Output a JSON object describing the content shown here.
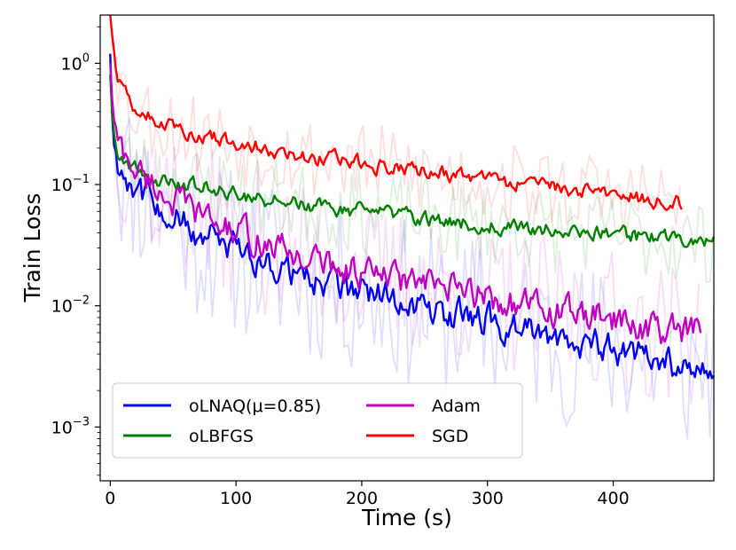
{
  "chart_data": {
    "type": "line",
    "title": "",
    "xlabel": "Time (s)",
    "ylabel": "Train Loss",
    "xscale": "linear",
    "yscale": "log",
    "xlim": [
      -8,
      480
    ],
    "ylim": [
      0.00036,
      2.5
    ],
    "xticks": [
      0,
      100,
      200,
      300,
      400
    ],
    "xtick_labels": [
      "0",
      "100",
      "200",
      "300",
      "400"
    ],
    "yticks": [
      1,
      0.1,
      0.01,
      0.001
    ],
    "ytick_labels": [
      {
        "base": "10",
        "exp": "0"
      },
      {
        "base": "10",
        "exp": "−1"
      },
      {
        "base": "10",
        "exp": "−2"
      },
      {
        "base": "10",
        "exp": "−3"
      }
    ],
    "grid": false,
    "legend": {
      "location": "lower-left",
      "columns": 2
    },
    "series": [
      {
        "name": "oLNAQ(μ=0.85)",
        "color": "#0000ee",
        "x": [
          0,
          2,
          5,
          10,
          20,
          30,
          40,
          50,
          60,
          70,
          80,
          100,
          120,
          140,
          160,
          180,
          200,
          220,
          240,
          260,
          280,
          300,
          320,
          340,
          360,
          380,
          400,
          420,
          440,
          460,
          480
        ],
        "y": [
          1.2,
          0.25,
          0.15,
          0.13,
          0.1,
          0.075,
          0.065,
          0.055,
          0.045,
          0.038,
          0.035,
          0.028,
          0.024,
          0.02,
          0.017,
          0.015,
          0.013,
          0.012,
          0.0105,
          0.009,
          0.0082,
          0.0075,
          0.0065,
          0.0058,
          0.0052,
          0.0048,
          0.0045,
          0.0039,
          0.0033,
          0.003,
          0.0033
        ]
      },
      {
        "name": "oLBFGS",
        "color": "#008000",
        "x": [
          0,
          2,
          5,
          10,
          20,
          30,
          40,
          50,
          60,
          80,
          100,
          120,
          140,
          160,
          180,
          200,
          220,
          240,
          260,
          280,
          300,
          320,
          340,
          360,
          380,
          400,
          420,
          440,
          460,
          480
        ],
        "y": [
          0.8,
          0.3,
          0.2,
          0.16,
          0.135,
          0.12,
          0.11,
          0.105,
          0.1,
          0.092,
          0.085,
          0.078,
          0.072,
          0.068,
          0.063,
          0.06,
          0.057,
          0.054,
          0.051,
          0.049,
          0.047,
          0.045,
          0.043,
          0.041,
          0.04,
          0.039,
          0.037,
          0.036,
          0.034,
          0.033
        ]
      },
      {
        "name": "Adam",
        "color": "#bf00bf",
        "x": [
          0,
          2,
          5,
          10,
          20,
          30,
          40,
          50,
          60,
          70,
          80,
          100,
          120,
          140,
          160,
          180,
          200,
          220,
          240,
          260,
          280,
          300,
          320,
          340,
          360,
          380,
          400,
          420,
          440,
          460,
          470
        ],
        "y": [
          1.0,
          0.4,
          0.25,
          0.18,
          0.135,
          0.11,
          0.09,
          0.075,
          0.065,
          0.058,
          0.05,
          0.04,
          0.034,
          0.028,
          0.024,
          0.021,
          0.019,
          0.017,
          0.0155,
          0.014,
          0.013,
          0.012,
          0.0105,
          0.0095,
          0.0088,
          0.0082,
          0.0075,
          0.0068,
          0.0062,
          0.0058,
          0.006
        ]
      },
      {
        "name": "SGD",
        "color": "#ff0000",
        "x": [
          0,
          2,
          5,
          10,
          15,
          20,
          30,
          40,
          50,
          60,
          80,
          100,
          120,
          140,
          160,
          180,
          200,
          220,
          240,
          260,
          280,
          300,
          320,
          340,
          360,
          380,
          400,
          420,
          440,
          455
        ],
        "y": [
          2.5,
          1.5,
          0.9,
          0.62,
          0.5,
          0.44,
          0.37,
          0.33,
          0.3,
          0.28,
          0.25,
          0.22,
          0.2,
          0.185,
          0.17,
          0.16,
          0.15,
          0.138,
          0.13,
          0.122,
          0.115,
          0.108,
          0.101,
          0.095,
          0.09,
          0.086,
          0.082,
          0.078,
          0.074,
          0.072
        ]
      }
    ]
  }
}
